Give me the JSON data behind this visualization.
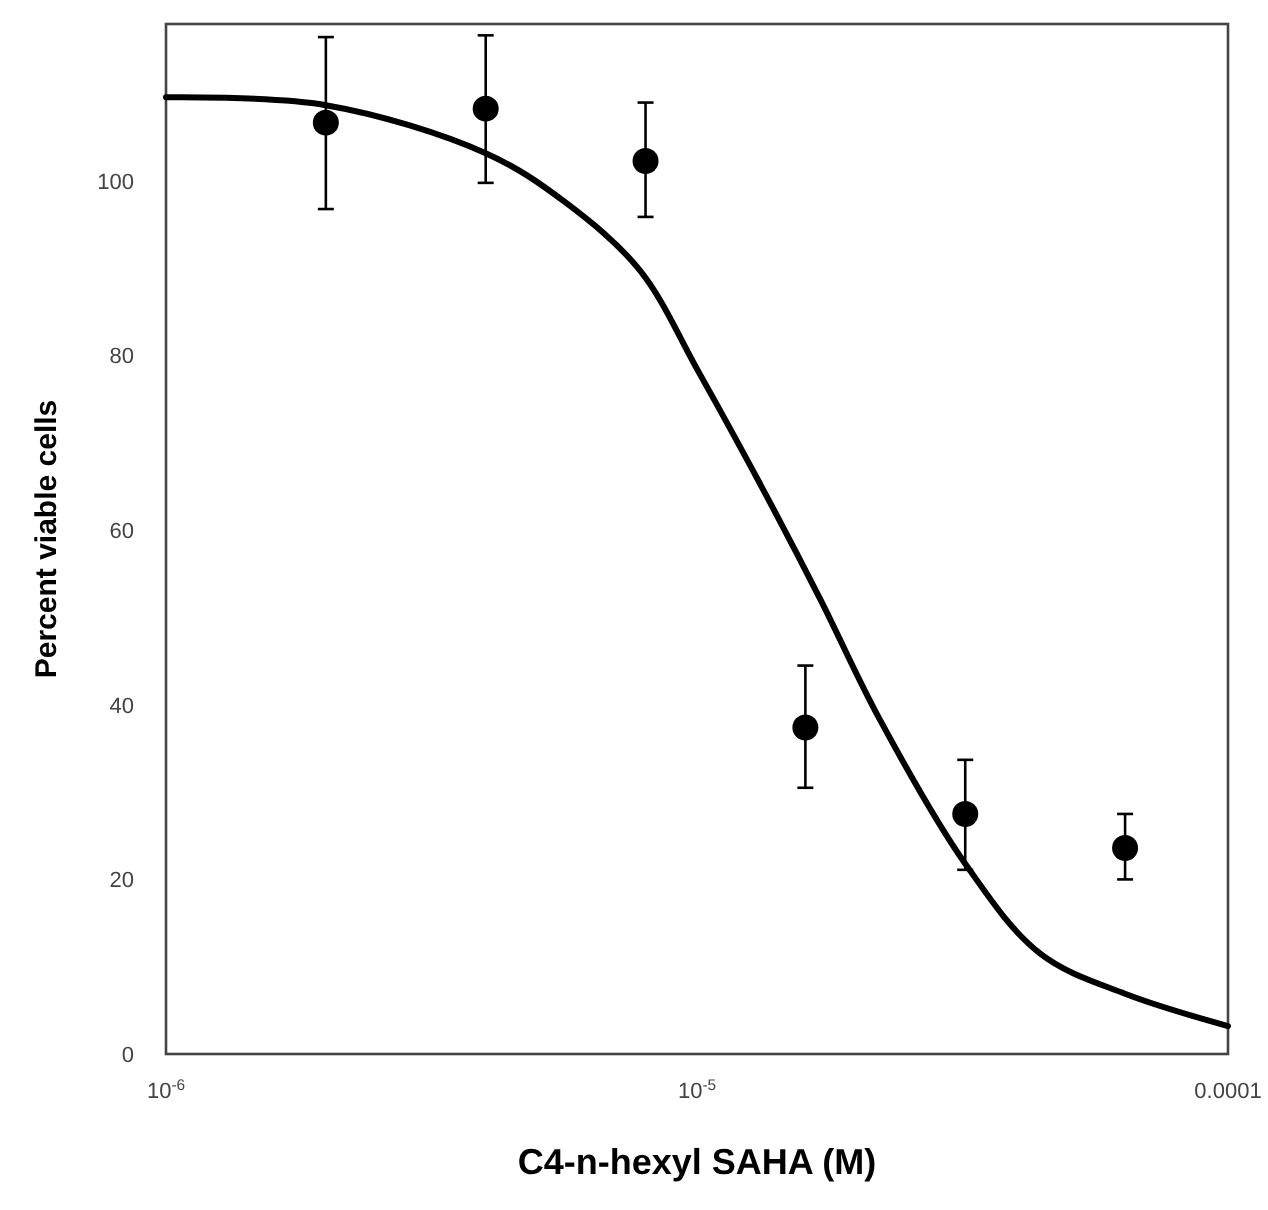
{
  "chart_data": {
    "type": "scatter",
    "xlabel": "C4-n-hexyl SAHA (M)",
    "ylabel": "Percent viable cells",
    "log": "x",
    "xlim": [
      1e-06,
      0.0001
    ],
    "xticks": [
      {
        "value": 1e-06,
        "label": "10$^{-6}$"
      },
      {
        "value": 1e-05,
        "label": "10$^{-5}$"
      },
      0.0001
    ],
    "ylim": [
      0,
      118
    ],
    "yticks": [
      0,
      20,
      40,
      60,
      80,
      100
    ],
    "grid": false,
    "marker": "circle",
    "series": [
      {
        "color": "#000000",
        "x": [
          2e-06,
          4e-06,
          8e-06,
          1.6e-05,
          3.2e-05,
          6.4e-05
        ],
        "values": [
          106.7,
          108.3,
          102.3,
          37.4,
          27.5,
          23.6
        ],
        "errors": [
          [
            96.8,
            116.5
          ],
          [
            99.8,
            116.7
          ],
          [
            95.9,
            109
          ],
          [
            30.5,
            44.5
          ],
          [
            21.1,
            33.7
          ],
          [
            20,
            27.5
          ]
        ]
      },
      {
        "type": "line",
        "color": "#000000",
        "marker": "none",
        "line_style": "solid",
        "x": [
          1e-06,
          2e-06,
          4e-06,
          5.67e-06,
          7.8e-06,
          1.01e-05,
          1.35e-05,
          1.71e-05,
          2.21e-05,
          3.2e-05,
          4.43e-05,
          6.4e-05,
          0.0001
        ],
        "values": [
          109.6,
          108.7,
          103.2,
          97.5,
          89.8,
          78,
          64,
          52,
          38.3,
          21.8,
          11.5,
          6.9,
          3.2
        ]
      }
    ]
  }
}
